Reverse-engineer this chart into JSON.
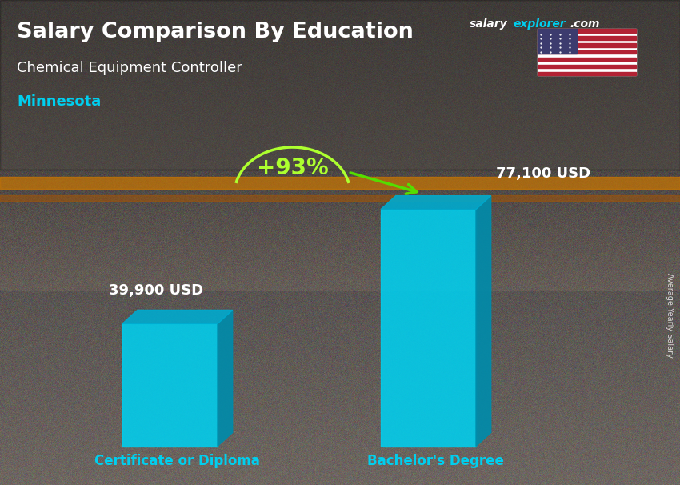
{
  "title": "Salary Comparison By Education",
  "subtitle": "Chemical Equipment Controller",
  "location": "Minnesota",
  "categories": [
    "Certificate or Diploma",
    "Bachelor's Degree"
  ],
  "values": [
    39900,
    77100
  ],
  "value_labels": [
    "39,900 USD",
    "77,100 USD"
  ],
  "pct_change": "+93%",
  "bar_color_main": "#00CFEF",
  "bar_color_side": "#008BAA",
  "bar_color_top": "#00AACE",
  "title_color": "#FFFFFF",
  "subtitle_color": "#FFFFFF",
  "location_color": "#00CFEF",
  "value_label_color": "#FFFFFF",
  "category_label_color": "#00CFEF",
  "pct_color": "#ADFF2F",
  "arrow_color": "#55DD00",
  "bg_dark": "#1a1a2e",
  "ylabel": "Average Yearly Salary",
  "ylim": [
    0,
    90000
  ],
  "figsize": [
    8.5,
    6.06
  ],
  "dpi": 100,
  "brand_salary_color": "#FFFFFF",
  "brand_explorer_color": "#00CFEF",
  "brand_com_color": "#FFFFFF"
}
